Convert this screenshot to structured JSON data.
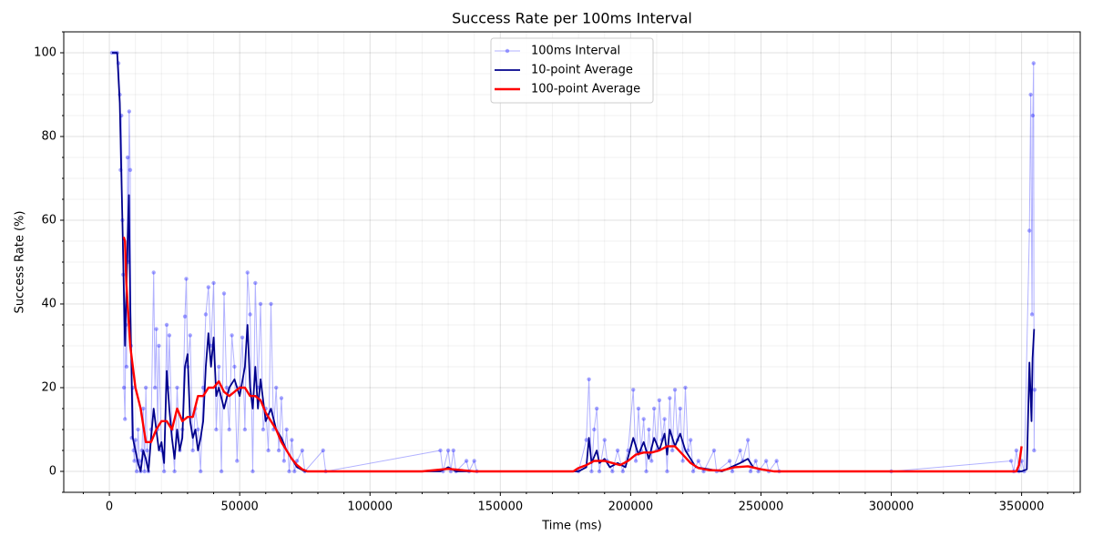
{
  "chart_data": {
    "type": "line",
    "title": "Success Rate per 100ms Interval",
    "x_label": "Time (ms)",
    "y_label": "Success Rate (%)",
    "xlim": [
      -17500,
      372500
    ],
    "ylim": [
      -5,
      105
    ],
    "xticks": [
      0,
      50000,
      100000,
      150000,
      200000,
      250000,
      300000,
      350000
    ],
    "yticks": [
      0,
      20,
      40,
      60,
      80,
      100
    ],
    "x_minor_ticks": [
      -10000,
      10000,
      20000,
      30000,
      40000,
      60000,
      70000,
      80000,
      90000,
      110000,
      120000,
      130000,
      140000,
      160000,
      170000,
      180000,
      190000,
      210000,
      220000,
      230000,
      240000,
      260000,
      270000,
      280000,
      290000,
      310000,
      320000,
      330000,
      340000,
      360000,
      370000
    ],
    "y_minor_ticks": [
      -5,
      5,
      10,
      15,
      25,
      30,
      35,
      45,
      50,
      55,
      65,
      70,
      75,
      85,
      90,
      95,
      105
    ],
    "grid": true,
    "legend_loc": "upper center",
    "series": [
      {
        "name": "100ms Interval",
        "color": "#0000ff",
        "marker": "o",
        "x": [
          1000,
          2000,
          3000,
          3500,
          4000,
          4300,
          4600,
          5000,
          5300,
          5600,
          6000,
          6300,
          6600,
          7000,
          7300,
          7600,
          8000,
          8300,
          8600,
          9000,
          9300,
          9600,
          10000,
          10500,
          11000,
          11500,
          12000,
          12500,
          13000,
          13500,
          14000,
          14500,
          15000,
          16000,
          17000,
          17500,
          18000,
          18500,
          19000,
          20000,
          21000,
          22000,
          22500,
          23000,
          24000,
          25000,
          26000,
          27000,
          28000,
          29000,
          29500,
          30000,
          31000,
          32000,
          33000,
          34000,
          35000,
          36000,
          37000,
          38000,
          39000,
          40000,
          41000,
          42000,
          43000,
          44000,
          45000,
          46000,
          47000,
          48000,
          49000,
          50000,
          51000,
          52000,
          53000,
          54000,
          55000,
          56000,
          57000,
          58000,
          59000,
          60000,
          61000,
          62000,
          63000,
          64000,
          65000,
          66000,
          67000,
          68000,
          69000,
          70000,
          71000,
          72000,
          74000,
          75000,
          82000,
          83000,
          127000,
          128000,
          130000,
          131000,
          132000,
          133000,
          137000,
          138000,
          140000,
          141000,
          180000,
          183000,
          184000,
          185000,
          186000,
          187000,
          188000,
          190000,
          191000,
          193000,
          195000,
          197000,
          199000,
          201000,
          202000,
          203000,
          204000,
          205000,
          206000,
          207000,
          208000,
          209000,
          210000,
          211000,
          212000,
          213000,
          214000,
          215000,
          216000,
          217000,
          218000,
          219000,
          220000,
          221000,
          222000,
          223000,
          224000,
          226000,
          228000,
          232000,
          233000,
          238000,
          239000,
          242000,
          243000,
          245000,
          246000,
          248000,
          249000,
          252000,
          253000,
          256000,
          257000,
          300000,
          346000,
          347000,
          348000,
          349000,
          350000,
          351000,
          353000,
          353500,
          354000,
          354300,
          354600,
          354800,
          355000
        ],
        "values": [
          100,
          100,
          100,
          97.5,
          90,
          72,
          85,
          60,
          47,
          20,
          12.5,
          35,
          25,
          75,
          50,
          86,
          72,
          30,
          8,
          20,
          5,
          2.5,
          7.5,
          0,
          10,
          2.5,
          0,
          5,
          15,
          0,
          20,
          5,
          0,
          10,
          47.5,
          20,
          34,
          10,
          30,
          5,
          0,
          35,
          20,
          32.5,
          10,
          0,
          20,
          5,
          10,
          37,
          46,
          25,
          32.5,
          5,
          15,
          10,
          0,
          20,
          37.5,
          44,
          30,
          45,
          10,
          25,
          0,
          42.5,
          20,
          10,
          32.5,
          25,
          2.5,
          20,
          32,
          10,
          47.5,
          37.5,
          0,
          45,
          20,
          40,
          10,
          15,
          5,
          40,
          10,
          20,
          5,
          17.5,
          2.5,
          10,
          0,
          7.5,
          0,
          2.5,
          5,
          0,
          5,
          0,
          5,
          0,
          5,
          0,
          5,
          0,
          2.5,
          0,
          2.5,
          0,
          0,
          7.5,
          22,
          0,
          10,
          15,
          0,
          7.5,
          2.5,
          0,
          5,
          0,
          5,
          19.5,
          2.5,
          15,
          5,
          12.5,
          0,
          10,
          2.5,
          15,
          5,
          17,
          7.5,
          12.5,
          0,
          17.5,
          5,
          19.5,
          7.5,
          15,
          2.5,
          20,
          5,
          7.5,
          0,
          2.5,
          0,
          5,
          0,
          2.5,
          0,
          5,
          2.5,
          7.5,
          0,
          2.5,
          0,
          2.5,
          0,
          2.5,
          0,
          0,
          2.5,
          0,
          5,
          0,
          2.5,
          0,
          57.5,
          90,
          37.5,
          85,
          97.5,
          5,
          19.5
        ]
      },
      {
        "name": "10-point Average",
        "color": "#00008b",
        "x": [
          1000,
          3000,
          4000,
          5000,
          6000,
          7000,
          7500,
          8000,
          9000,
          10000,
          11000,
          12000,
          13000,
          14000,
          15000,
          16000,
          17000,
          18000,
          19000,
          20000,
          21000,
          22000,
          23000,
          24000,
          25000,
          26000,
          27000,
          28000,
          29000,
          30000,
          31000,
          32000,
          33000,
          34000,
          35000,
          36000,
          37000,
          38000,
          39000,
          40000,
          41000,
          42000,
          44000,
          46000,
          48000,
          50000,
          52000,
          53000,
          54000,
          55000,
          56000,
          57000,
          58000,
          60000,
          62000,
          64000,
          66000,
          68000,
          70000,
          72000,
          75000,
          127000,
          130000,
          133000,
          180000,
          183000,
          184000,
          185000,
          187000,
          188000,
          190000,
          192000,
          195000,
          198000,
          201000,
          203000,
          205000,
          207000,
          209000,
          211000,
          213000,
          214000,
          215000,
          217000,
          219000,
          221000,
          223000,
          225000,
          230000,
          235000,
          242000,
          245000,
          247000,
          250000,
          255000,
          350000,
          352000,
          353000,
          353800,
          354200,
          354800
        ],
        "values": [
          100,
          100,
          88,
          60,
          30,
          55,
          66,
          40,
          8,
          5,
          2,
          0,
          5,
          3,
          0,
          8,
          15,
          10,
          5,
          7,
          2,
          24,
          15,
          8,
          3,
          10,
          5,
          8,
          25,
          28,
          12,
          8,
          10,
          5,
          8,
          12,
          25,
          33,
          25,
          32,
          18,
          20,
          15,
          20,
          22,
          18,
          25,
          35,
          20,
          15,
          25,
          15,
          22,
          12,
          15,
          10,
          8,
          5,
          3,
          1,
          0,
          0,
          1,
          0,
          0,
          1,
          8,
          2,
          5,
          2,
          3,
          1,
          2,
          1,
          8,
          4,
          7,
          3,
          8,
          5,
          9,
          4,
          10,
          6,
          9,
          5,
          3,
          1,
          0.5,
          0,
          2,
          3,
          1,
          0.5,
          0,
          0,
          0.5,
          26,
          12,
          27,
          34
        ]
      },
      {
        "name": "100-point Average",
        "color": "#ff0000",
        "x": [
          5500,
          6000,
          6500,
          7000,
          7500,
          8000,
          9000,
          10000,
          12000,
          14000,
          16000,
          18000,
          20000,
          22000,
          24000,
          26000,
          28000,
          30000,
          32000,
          34000,
          36000,
          38000,
          40000,
          42000,
          44000,
          46000,
          48000,
          50000,
          52000,
          54000,
          56000,
          58000,
          60000,
          62000,
          64000,
          66000,
          68000,
          70000,
          72000,
          74000,
          76000,
          120000,
          125000,
          130000,
          135000,
          140000,
          178000,
          180000,
          183000,
          186000,
          190000,
          193000,
          196000,
          199000,
          202000,
          205000,
          208000,
          211000,
          214000,
          217000,
          220000,
          223000,
          226000,
          230000,
          235000,
          240000,
          245000,
          250000,
          255000,
          348000,
          349000,
          350000
        ],
        "values": [
          56,
          55,
          45,
          40,
          35,
          30,
          25,
          20,
          15,
          7,
          7,
          10,
          12,
          12,
          10,
          15,
          12,
          13,
          13,
          18,
          18,
          20,
          20,
          21.5,
          19,
          18,
          19,
          20,
          20,
          18,
          18,
          17,
          14,
          12,
          10,
          7,
          5,
          3,
          1.5,
          0.5,
          0,
          0,
          0.3,
          0.6,
          0.3,
          0,
          0,
          0.8,
          1.5,
          2.5,
          2.5,
          2,
          1.5,
          2.5,
          4,
          4.5,
          4.5,
          5,
          6,
          6,
          4,
          2,
          0.8,
          0.3,
          0.2,
          1,
          1.2,
          0.5,
          0,
          0,
          1.5,
          6
        ]
      }
    ]
  }
}
